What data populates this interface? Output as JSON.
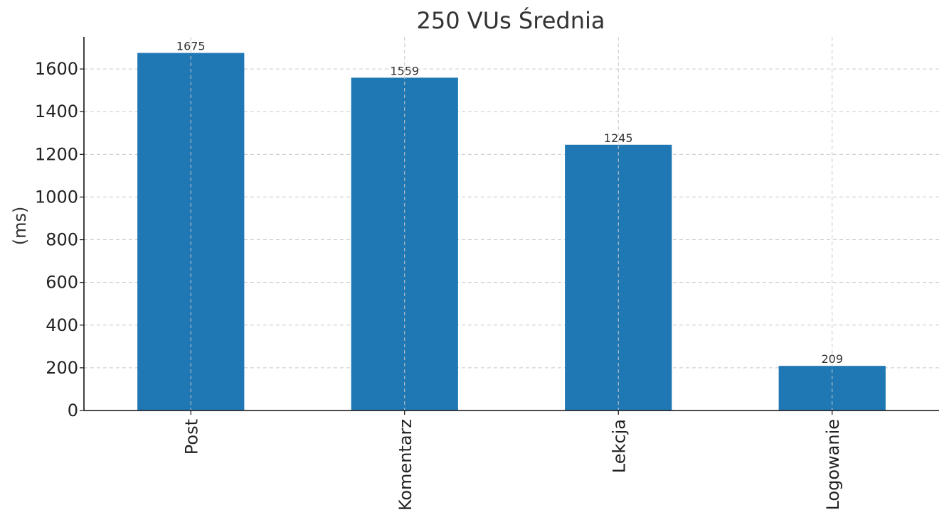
{
  "chart_data": {
    "type": "bar",
    "title": "250 VUs Średnia",
    "xlabel": "",
    "ylabel": "(ms)",
    "categories": [
      "Post",
      "Komentarz",
      "Lekcja",
      "Logowanie"
    ],
    "values": [
      1675,
      1559,
      1245,
      209
    ],
    "value_labels": [
      "1675",
      "1559",
      "1245",
      "209"
    ],
    "ylim": [
      0,
      1750
    ],
    "yticks": [
      0,
      200,
      400,
      600,
      800,
      1000,
      1200,
      1400,
      1600
    ],
    "ytick_labels": [
      "0",
      "200",
      "400",
      "600",
      "800",
      "1000",
      "1200",
      "1400",
      "1600"
    ],
    "grid": true,
    "grid_style": "dashed",
    "legend": "none",
    "bar_color": "#1f77b4"
  }
}
